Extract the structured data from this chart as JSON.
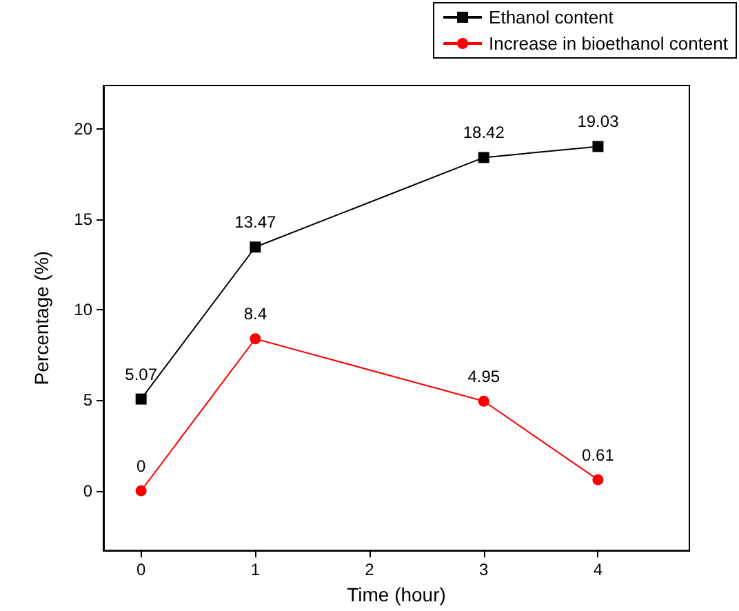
{
  "chart_data": {
    "type": "line",
    "xlabel": "Time (hour)",
    "ylabel": "Percentage (%)",
    "x": [
      0,
      1,
      3,
      4
    ],
    "series": [
      {
        "name": "Ethanol content",
        "color": "#000000",
        "marker": "square",
        "values": [
          5.07,
          13.47,
          18.42,
          19.03
        ]
      },
      {
        "name": "Increase in bioethanol content",
        "color": "#ff0000",
        "marker": "circle",
        "values": [
          0,
          8.4,
          4.95,
          0.61
        ]
      }
    ],
    "xlim": [
      -0.33,
      4.8
    ],
    "xticks": [
      0,
      1,
      2,
      3,
      4
    ],
    "ylim": [
      -3.3,
      22.4
    ],
    "yticks": [
      0,
      5,
      10,
      15,
      20
    ],
    "data_labels": true,
    "legend": "top right",
    "line_style": "solid"
  }
}
